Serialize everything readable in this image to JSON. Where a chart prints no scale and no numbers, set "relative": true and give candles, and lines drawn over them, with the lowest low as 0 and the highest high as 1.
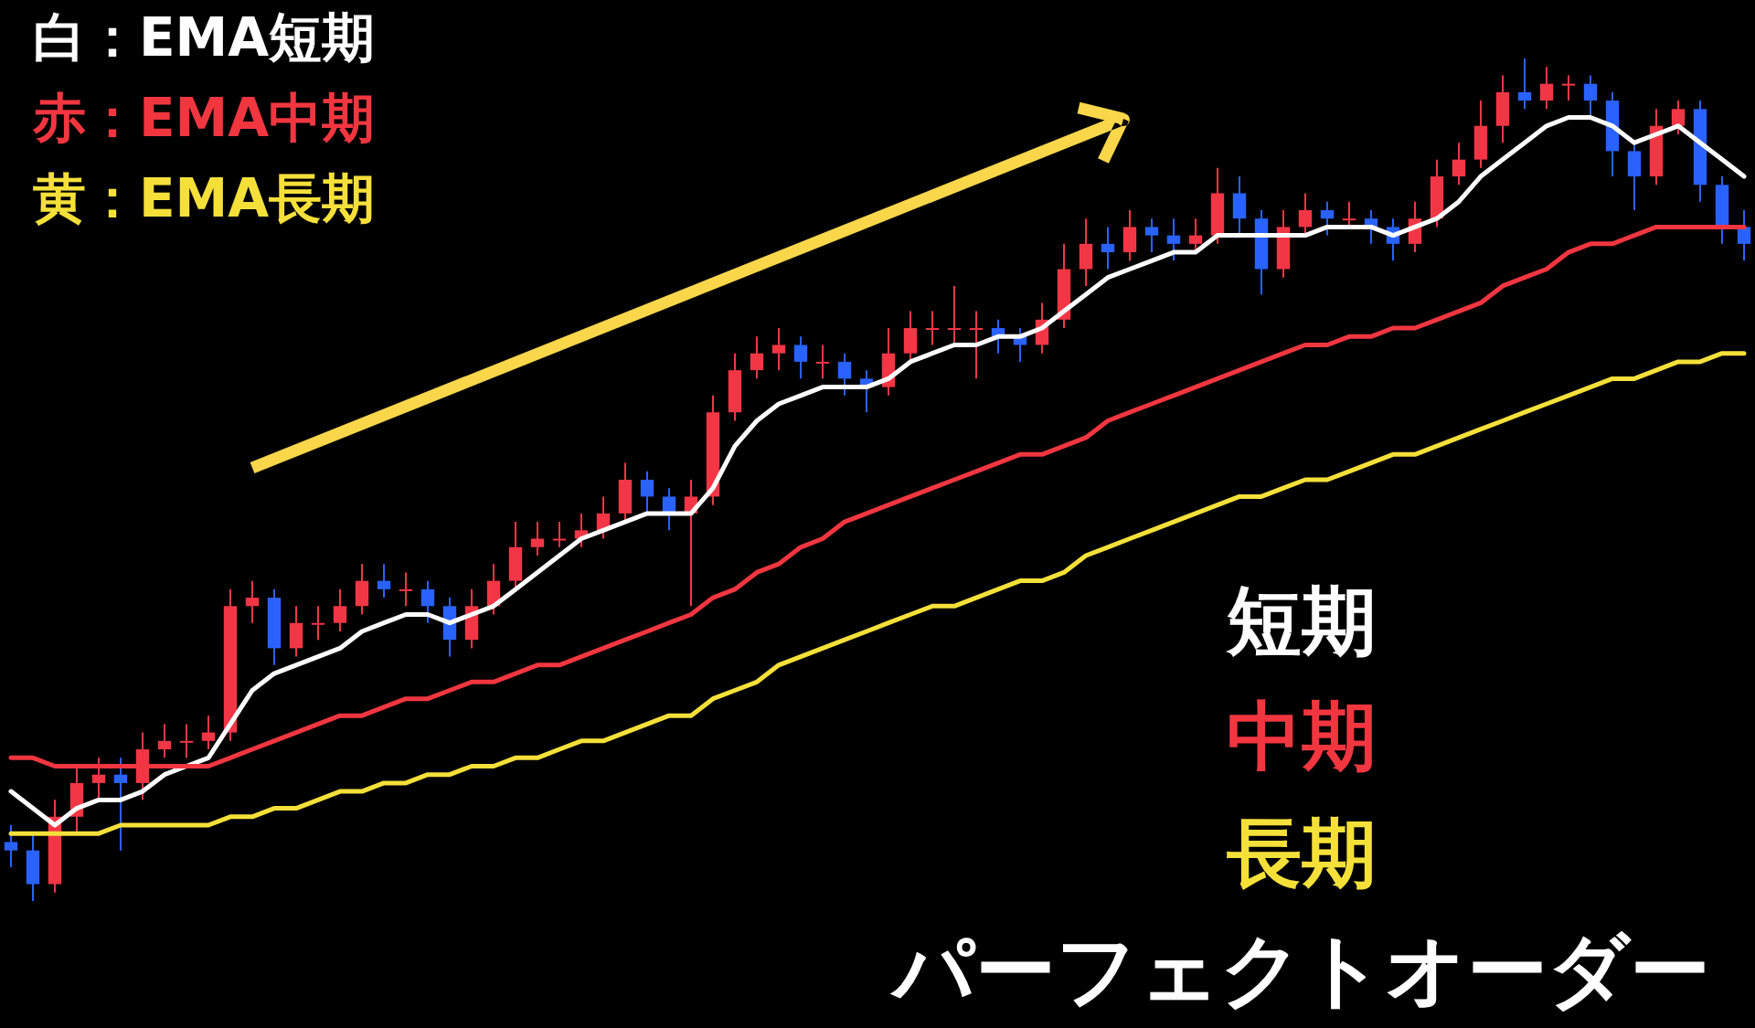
{
  "chart_data": {
    "type": "candlestick",
    "relative": true,
    "categories": [
      null,
      null,
      null,
      null,
      null,
      null,
      null,
      null,
      null,
      null,
      null,
      null,
      null,
      null,
      null,
      null,
      null,
      null,
      null,
      null,
      null,
      null,
      null,
      null,
      null,
      null,
      null,
      null,
      null,
      null,
      null,
      null,
      null,
      null,
      null,
      null,
      null,
      null,
      null,
      null,
      null,
      null,
      null,
      null,
      null,
      null,
      null,
      null,
      null,
      null,
      null,
      null,
      null,
      null,
      null,
      null,
      null,
      null,
      null,
      null,
      null,
      null,
      null,
      null,
      null,
      null,
      null,
      null,
      null,
      null,
      null,
      null,
      null,
      null,
      null,
      null,
      null,
      null,
      null,
      null
    ],
    "ohlc": [
      [
        0.07,
        0.09,
        0.04,
        0.06
      ],
      [
        0.06,
        0.08,
        0,
        0.02
      ],
      [
        0.02,
        0.12,
        0.01,
        0.1
      ],
      [
        0.1,
        0.16,
        0.08,
        0.14
      ],
      [
        0.14,
        0.17,
        0.12,
        0.15
      ],
      [
        0.15,
        0.17,
        0.06,
        0.14
      ],
      [
        0.14,
        0.2,
        0.12,
        0.18
      ],
      [
        0.18,
        0.21,
        0.17,
        0.19
      ],
      [
        0.19,
        0.21,
        0.17,
        0.19
      ],
      [
        0.19,
        0.22,
        0.18,
        0.2
      ],
      [
        0.2,
        0.37,
        0.19,
        0.35
      ],
      [
        0.35,
        0.38,
        0.33,
        0.36
      ],
      [
        0.36,
        0.37,
        0.28,
        0.3
      ],
      [
        0.3,
        0.35,
        0.29,
        0.33
      ],
      [
        0.33,
        0.35,
        0.31,
        0.33
      ],
      [
        0.33,
        0.37,
        0.32,
        0.35
      ],
      [
        0.35,
        0.4,
        0.34,
        0.38
      ],
      [
        0.38,
        0.4,
        0.36,
        0.37
      ],
      [
        0.37,
        0.39,
        0.35,
        0.37
      ],
      [
        0.37,
        0.38,
        0.33,
        0.35
      ],
      [
        0.35,
        0.36,
        0.29,
        0.31
      ],
      [
        0.31,
        0.37,
        0.3,
        0.35
      ],
      [
        0.35,
        0.4,
        0.34,
        0.38
      ],
      [
        0.38,
        0.45,
        0.37,
        0.42
      ],
      [
        0.42,
        0.45,
        0.41,
        0.43
      ],
      [
        0.43,
        0.45,
        0.42,
        0.43
      ],
      [
        0.43,
        0.46,
        0.42,
        0.44
      ],
      [
        0.44,
        0.48,
        0.43,
        0.46
      ],
      [
        0.46,
        0.52,
        0.45,
        0.5
      ],
      [
        0.5,
        0.51,
        0.46,
        0.48
      ],
      [
        0.48,
        0.49,
        0.44,
        0.46
      ],
      [
        0.46,
        0.5,
        0.35,
        0.48
      ],
      [
        0.48,
        0.6,
        0.47,
        0.58
      ],
      [
        0.58,
        0.65,
        0.57,
        0.63
      ],
      [
        0.63,
        0.67,
        0.62,
        0.65
      ],
      [
        0.65,
        0.68,
        0.63,
        0.66
      ],
      [
        0.66,
        0.67,
        0.62,
        0.64
      ],
      [
        0.64,
        0.66,
        0.62,
        0.64
      ],
      [
        0.64,
        0.65,
        0.6,
        0.62
      ],
      [
        0.62,
        0.63,
        0.58,
        0.61
      ],
      [
        0.61,
        0.68,
        0.6,
        0.65
      ],
      [
        0.65,
        0.7,
        0.64,
        0.68
      ],
      [
        0.68,
        0.7,
        0.66,
        0.68
      ],
      [
        0.68,
        0.73,
        0.66,
        0.68
      ],
      [
        0.68,
        0.7,
        0.62,
        0.68
      ],
      [
        0.68,
        0.69,
        0.65,
        0.67
      ],
      [
        0.67,
        0.68,
        0.64,
        0.66
      ],
      [
        0.66,
        0.71,
        0.65,
        0.69
      ],
      [
        0.69,
        0.78,
        0.68,
        0.75
      ],
      [
        0.75,
        0.81,
        0.73,
        0.78
      ],
      [
        0.78,
        0.8,
        0.75,
        0.77
      ],
      [
        0.77,
        0.82,
        0.76,
        0.8
      ],
      [
        0.8,
        0.81,
        0.77,
        0.79
      ],
      [
        0.79,
        0.81,
        0.76,
        0.78
      ],
      [
        0.78,
        0.81,
        0.77,
        0.79
      ],
      [
        0.79,
        0.87,
        0.78,
        0.84
      ],
      [
        0.84,
        0.86,
        0.79,
        0.81
      ],
      [
        0.81,
        0.82,
        0.72,
        0.75
      ],
      [
        0.75,
        0.82,
        0.74,
        0.8
      ],
      [
        0.8,
        0.84,
        0.79,
        0.82
      ],
      [
        0.82,
        0.83,
        0.79,
        0.81
      ],
      [
        0.81,
        0.83,
        0.8,
        0.81
      ],
      [
        0.81,
        0.82,
        0.78,
        0.8
      ],
      [
        0.8,
        0.81,
        0.76,
        0.78
      ],
      [
        0.78,
        0.83,
        0.77,
        0.81
      ],
      [
        0.81,
        0.88,
        0.8,
        0.86
      ],
      [
        0.86,
        0.9,
        0.85,
        0.88
      ],
      [
        0.88,
        0.95,
        0.87,
        0.92
      ],
      [
        0.92,
        0.98,
        0.9,
        0.96
      ],
      [
        0.96,
        1,
        0.94,
        0.95
      ],
      [
        0.95,
        0.99,
        0.94,
        0.97
      ],
      [
        0.97,
        0.98,
        0.95,
        0.97
      ],
      [
        0.97,
        0.98,
        0.93,
        0.95
      ],
      [
        0.95,
        0.96,
        0.86,
        0.89
      ],
      [
        0.89,
        0.9,
        0.82,
        0.86
      ],
      [
        0.86,
        0.94,
        0.85,
        0.92
      ],
      [
        0.92,
        0.95,
        0.91,
        0.94
      ],
      [
        0.94,
        0.95,
        0.83,
        0.85
      ],
      [
        0.85,
        0.86,
        0.78,
        0.8
      ],
      [
        0.8,
        0.82,
        0.76,
        0.78
      ]
    ],
    "colors": [
      "#2962ff",
      "#2962ff",
      "#f23645",
      "#f23645",
      "#f23645",
      "#2962ff",
      "#f23645",
      "#f23645",
      "#f23645",
      "#f23645",
      "#f23645",
      "#f23645",
      "#2962ff",
      "#f23645",
      "#f23645",
      "#f23645",
      "#f23645",
      "#2962ff",
      "#f23645",
      "#2962ff",
      "#2962ff",
      "#f23645",
      "#f23645",
      "#f23645",
      "#f23645",
      "#f23645",
      "#f23645",
      "#f23645",
      "#f23645",
      "#2962ff",
      "#2962ff",
      "#f23645",
      "#f23645",
      "#f23645",
      "#f23645",
      "#f23645",
      "#2962ff",
      "#f23645",
      "#2962ff",
      "#2962ff",
      "#f23645",
      "#f23645",
      "#f23645",
      "#f23645",
      "#f23645",
      "#2962ff",
      "#2962ff",
      "#f23645",
      "#f23645",
      "#f23645",
      "#2962ff",
      "#f23645",
      "#2962ff",
      "#2962ff",
      "#f23645",
      "#f23645",
      "#2962ff",
      "#2962ff",
      "#f23645",
      "#f23645",
      "#2962ff",
      "#f23645",
      "#2962ff",
      "#2962ff",
      "#f23645",
      "#f23645",
      "#f23645",
      "#f23645",
      "#f23645",
      "#2962ff",
      "#f23645",
      "#f23645",
      "#2962ff",
      "#2962ff",
      "#2962ff",
      "#f23645",
      "#f23645",
      "#2962ff",
      "#2962ff",
      "#2962ff"
    ],
    "series": [
      {
        "name": "白：EMA短期",
        "type": "line",
        "color": "#ffffff",
        "values": [
          0.13,
          0.11,
          0.09,
          0.11,
          0.12,
          0.12,
          0.13,
          0.15,
          0.16,
          0.17,
          0.21,
          0.25,
          0.27,
          0.28,
          0.29,
          0.3,
          0.32,
          0.33,
          0.34,
          0.34,
          0.33,
          0.34,
          0.35,
          0.37,
          0.39,
          0.41,
          0.43,
          0.44,
          0.45,
          0.46,
          0.46,
          0.46,
          0.49,
          0.54,
          0.57,
          0.59,
          0.6,
          0.61,
          0.61,
          0.61,
          0.62,
          0.64,
          0.65,
          0.66,
          0.66,
          0.67,
          0.67,
          0.68,
          0.7,
          0.72,
          0.74,
          0.75,
          0.76,
          0.77,
          0.77,
          0.79,
          0.79,
          0.79,
          0.79,
          0.79,
          0.8,
          0.8,
          0.8,
          0.79,
          0.8,
          0.81,
          0.83,
          0.86,
          0.88,
          0.9,
          0.92,
          0.93,
          0.93,
          0.92,
          0.9,
          0.91,
          0.92,
          0.9,
          0.88,
          0.86
        ]
      },
      {
        "name": "赤：EMA中期",
        "type": "line",
        "color": "#f23640",
        "values": [
          0.17,
          0.17,
          0.16,
          0.16,
          0.16,
          0.16,
          0.16,
          0.16,
          0.16,
          0.16,
          0.17,
          0.18,
          0.19,
          0.2,
          0.21,
          0.22,
          0.22,
          0.23,
          0.24,
          0.24,
          0.25,
          0.26,
          0.26,
          0.27,
          0.28,
          0.28,
          0.29,
          0.3,
          0.31,
          0.32,
          0.33,
          0.34,
          0.36,
          0.37,
          0.39,
          0.4,
          0.42,
          0.43,
          0.45,
          0.46,
          0.47,
          0.48,
          0.49,
          0.5,
          0.51,
          0.52,
          0.53,
          0.53,
          0.54,
          0.55,
          0.57,
          0.58,
          0.59,
          0.6,
          0.61,
          0.62,
          0.63,
          0.64,
          0.65,
          0.66,
          0.66,
          0.67,
          0.67,
          0.68,
          0.68,
          0.69,
          0.7,
          0.71,
          0.73,
          0.74,
          0.75,
          0.77,
          0.78,
          0.78,
          0.79,
          0.8,
          0.8,
          0.8,
          0.8,
          0.8
        ]
      },
      {
        "name": "黄：EMA長期",
        "type": "line",
        "color": "#f5e03a",
        "values": [
          0.08,
          0.08,
          0.08,
          0.08,
          0.08,
          0.09,
          0.09,
          0.09,
          0.09,
          0.09,
          0.1,
          0.1,
          0.11,
          0.11,
          0.12,
          0.13,
          0.13,
          0.14,
          0.14,
          0.15,
          0.15,
          0.16,
          0.16,
          0.17,
          0.17,
          0.18,
          0.19,
          0.19,
          0.2,
          0.21,
          0.22,
          0.22,
          0.24,
          0.25,
          0.26,
          0.28,
          0.29,
          0.3,
          0.31,
          0.32,
          0.33,
          0.34,
          0.35,
          0.35,
          0.36,
          0.37,
          0.38,
          0.38,
          0.39,
          0.41,
          0.42,
          0.43,
          0.44,
          0.45,
          0.46,
          0.47,
          0.48,
          0.48,
          0.49,
          0.5,
          0.5,
          0.51,
          0.52,
          0.53,
          0.53,
          0.54,
          0.55,
          0.56,
          0.57,
          0.58,
          0.59,
          0.6,
          0.61,
          0.62,
          0.62,
          0.63,
          0.64,
          0.64,
          0.65,
          0.65
        ]
      }
    ],
    "annotations": [
      "短期",
      "中期",
      "長期",
      "パーフェクトオーダー"
    ]
  }
}
